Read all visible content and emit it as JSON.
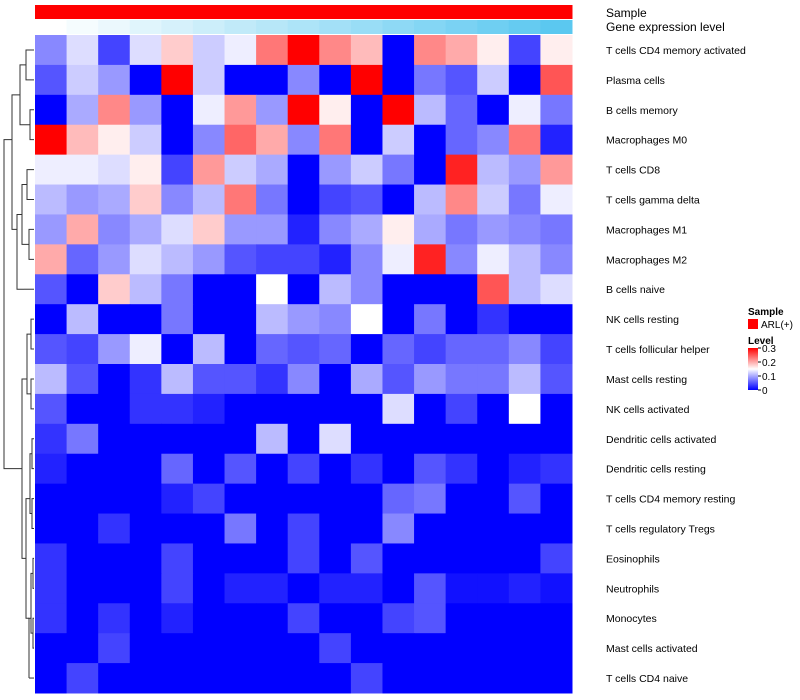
{
  "chart_data": {
    "type": "heatmap",
    "title": "",
    "annotation_tracks": [
      {
        "label": "Sample"
      },
      {
        "label": "Gene expression level"
      }
    ],
    "rows": [
      "T cells CD4 memory activated",
      "Plasma cells",
      "B cells memory",
      "Macrophages M0",
      "T cells CD8",
      "T cells gamma delta",
      "Macrophages M1",
      "Macrophages M2",
      "B cells naive",
      "NK cells resting",
      "T cells follicular helper",
      "Mast cells resting",
      "NK cells activated",
      "Dendritic cells activated",
      "Dendritic cells resting",
      "T cells CD4 memory resting",
      "T cells regulatory  Tregs",
      "Eosinophils",
      "Neutrophils",
      "Monocytes",
      "Mast cells activated",
      "T cells CD4 naive"
    ],
    "values": [
      [
        0.08,
        0.13,
        0.04,
        0.13,
        0.18,
        0.12,
        0.14,
        0.23,
        0.3,
        0.22,
        0.19,
        0.0,
        0.22,
        0.2,
        0.16,
        0.04,
        0.16
      ],
      [
        0.05,
        0.12,
        0.09,
        0.0,
        0.3,
        0.12,
        0.0,
        0.0,
        0.08,
        0.0,
        0.3,
        0.0,
        0.07,
        0.05,
        0.12,
        0.0,
        0.25
      ],
      [
        0.0,
        0.1,
        0.22,
        0.09,
        0.0,
        0.14,
        0.21,
        0.09,
        0.3,
        0.16,
        0.0,
        0.3,
        0.11,
        0.06,
        0.0,
        0.14,
        0.07
      ],
      [
        0.3,
        0.19,
        0.16,
        0.12,
        0.0,
        0.08,
        0.24,
        0.2,
        0.08,
        0.23,
        0.0,
        0.12,
        0.0,
        0.06,
        0.08,
        0.23,
        0.02
      ],
      [
        0.14,
        0.14,
        0.13,
        0.16,
        0.04,
        0.21,
        0.12,
        0.1,
        0.0,
        0.09,
        0.12,
        0.07,
        0.0,
        0.28,
        0.11,
        0.09,
        0.21
      ],
      [
        0.11,
        0.09,
        0.1,
        0.18,
        0.08,
        0.11,
        0.23,
        0.07,
        0.0,
        0.04,
        0.05,
        0.0,
        0.11,
        0.22,
        0.12,
        0.07,
        0.14
      ],
      [
        0.09,
        0.2,
        0.08,
        0.1,
        0.13,
        0.18,
        0.09,
        0.09,
        0.02,
        0.08,
        0.1,
        0.16,
        0.1,
        0.07,
        0.09,
        0.08,
        0.07
      ],
      [
        0.2,
        0.06,
        0.09,
        0.13,
        0.11,
        0.09,
        0.05,
        0.04,
        0.04,
        0.02,
        0.08,
        0.14,
        0.28,
        0.08,
        0.14,
        0.11,
        0.08
      ],
      [
        0.05,
        0.0,
        0.18,
        0.11,
        0.07,
        0.0,
        0.0,
        0.15,
        0.0,
        0.11,
        0.08,
        0.0,
        0.0,
        0.0,
        0.25,
        0.11,
        0.13
      ],
      [
        0.0,
        0.11,
        0.0,
        0.0,
        0.07,
        0.0,
        0.0,
        0.11,
        0.09,
        0.08,
        0.15,
        0.0,
        0.07,
        0.0,
        0.03,
        0.0,
        0.0
      ],
      [
        0.05,
        0.04,
        0.09,
        0.14,
        0.0,
        0.11,
        0.0,
        0.06,
        0.05,
        0.06,
        0.0,
        0.06,
        0.04,
        0.06,
        0.06,
        0.08,
        0.04
      ],
      [
        0.11,
        0.05,
        0.0,
        0.03,
        0.11,
        0.05,
        0.05,
        0.03,
        0.08,
        0.0,
        0.1,
        0.05,
        0.09,
        0.07,
        0.07,
        0.11,
        0.05
      ],
      [
        0.05,
        0.0,
        0.0,
        0.03,
        0.03,
        0.02,
        0.0,
        0.0,
        0.0,
        0.0,
        0.0,
        0.13,
        0.0,
        0.04,
        0.0,
        0.15,
        0.0
      ],
      [
        0.03,
        0.07,
        0.0,
        0.0,
        0.0,
        0.0,
        0.0,
        0.11,
        0.0,
        0.13,
        0.0,
        0.0,
        0.0,
        0.0,
        0.0,
        0.0,
        0.0
      ],
      [
        0.02,
        0.0,
        0.0,
        0.0,
        0.06,
        0.0,
        0.05,
        0.0,
        0.04,
        0.0,
        0.03,
        0.0,
        0.05,
        0.03,
        0.0,
        0.02,
        0.03
      ],
      [
        0.0,
        0.0,
        0.0,
        0.0,
        0.02,
        0.04,
        0.0,
        0.0,
        0.0,
        0.0,
        0.0,
        0.06,
        0.07,
        0.0,
        0.0,
        0.05,
        0.0
      ],
      [
        0.0,
        0.0,
        0.03,
        0.0,
        0.0,
        0.0,
        0.07,
        0.0,
        0.04,
        0.0,
        0.0,
        0.08,
        0.0,
        0.0,
        0.0,
        0.0,
        0.0
      ],
      [
        0.03,
        0.0,
        0.0,
        0.0,
        0.04,
        0.0,
        0.0,
        0.0,
        0.04,
        0.0,
        0.05,
        0.0,
        0.0,
        0.0,
        0.0,
        0.0,
        0.04
      ],
      [
        0.03,
        0.0,
        0.0,
        0.0,
        0.04,
        0.0,
        0.02,
        0.02,
        0.0,
        0.02,
        0.02,
        0.0,
        0.05,
        0.01,
        0.01,
        0.02,
        0.01
      ],
      [
        0.03,
        0.0,
        0.03,
        0.0,
        0.02,
        0.0,
        0.0,
        0.0,
        0.04,
        0.0,
        0.0,
        0.04,
        0.05,
        0.0,
        0.0,
        0.0,
        0.0
      ],
      [
        0.0,
        0.0,
        0.04,
        0.0,
        0.0,
        0.0,
        0.0,
        0.0,
        0.0,
        0.04,
        0.0,
        0.0,
        0.0,
        0.0,
        0.0,
        0.0,
        0.0
      ],
      [
        0.0,
        0.04,
        0.0,
        0.0,
        0.0,
        0.0,
        0.0,
        0.0,
        0.0,
        0.0,
        0.04,
        0.0,
        0.0,
        0.0,
        0.0,
        0.0,
        0.0
      ]
    ],
    "gene_expression_level": [
      0.0,
      0.06,
      0.12,
      0.19,
      0.25,
      0.31,
      0.38,
      0.44,
      0.5,
      0.56,
      0.62,
      0.69,
      0.75,
      0.81,
      0.88,
      0.94,
      1.0
    ],
    "color_scale": {
      "min": 0,
      "mid": 0.15,
      "max": 0.3,
      "low_color": "#0000FF",
      "mid_color": "#FFFFFF",
      "high_color": "#FF0000"
    },
    "legend": {
      "sample_title": "Sample",
      "sample_entries": [
        {
          "label": "ARL(+)",
          "color": "#FF0000"
        }
      ],
      "level_title": "Level",
      "level_ticks": [
        "0.3",
        "0.2",
        "0.1",
        "0"
      ],
      "level_tick_values": [
        0.3,
        0.2,
        0.1,
        0
      ]
    },
    "expression_track_colors": {
      "low": "#FFFFFF",
      "high": "#5BC8F0"
    },
    "sample_track_color": "#FF0000"
  }
}
